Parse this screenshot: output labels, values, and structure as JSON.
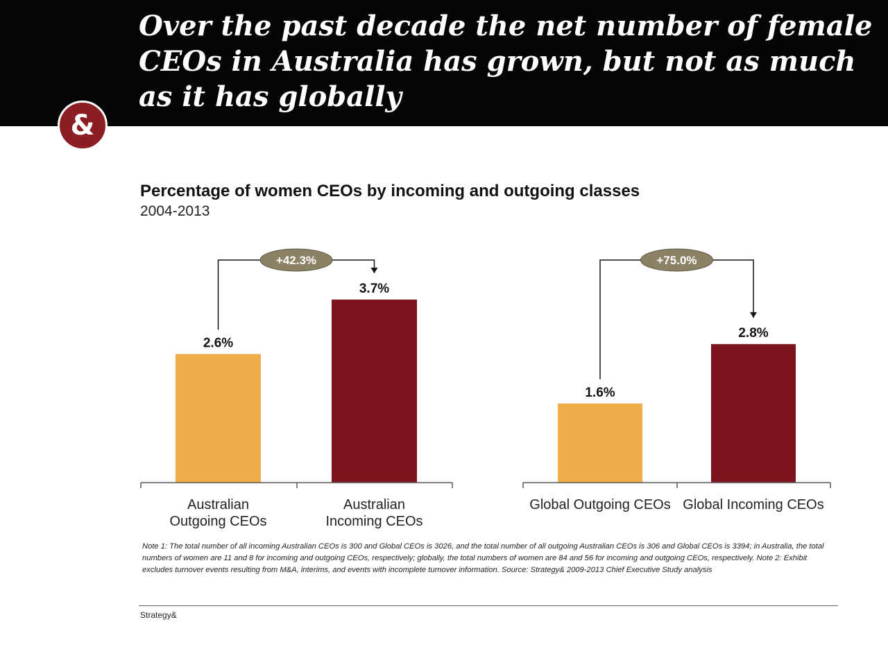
{
  "header": {
    "title": "Over the past decade the net number of female CEOs in Australia has grown, but not as much as it has globally",
    "logo_text": "&"
  },
  "colors": {
    "header_bg": "#050505",
    "logo": "#8c1d24",
    "outgoing": "#f0ae4b",
    "incoming": "#7b141d",
    "badge": "#8b8265"
  },
  "chart_data": {
    "type": "bar",
    "title": "Percentage of women CEOs by incoming and outgoing classes",
    "subtitle": "2004-2013",
    "ylim": [
      0,
      4.2
    ],
    "grid": false,
    "legend": "none",
    "groups": [
      {
        "categories": [
          "Australian Outgoing CEOs",
          "Australian Incoming CEOs"
        ],
        "values": [
          2.6,
          3.7
        ],
        "data_labels": [
          "2.6%",
          "3.7%"
        ],
        "change_label": "+42.3%"
      },
      {
        "categories": [
          "Global Outgoing CEOs",
          "Global Incoming CEOs"
        ],
        "values": [
          1.6,
          2.8
        ],
        "data_labels": [
          "1.6%",
          "2.8%"
        ],
        "change_label": "+75.0%"
      }
    ]
  },
  "note": "Note 1: The total number of all incoming Australian CEOs is 300 and Global CEOs is 3026, and the total number of all outgoing Australian CEOs is 306 and Global CEOs is 3394; in Australia, the total numbers of women are 11 and 8 for incoming and outgoing CEOs, respectively; globally, the total numbers of women are 84 and 56 for incoming and outgoing CEOs, respectively. Note 2: Exhibit excludes turnover events resulting from M&A, interims, and events with incomplete turnover information. Source: Strategy& 2009-2013 Chief Executive Study analysis",
  "footer": "Strategy&"
}
